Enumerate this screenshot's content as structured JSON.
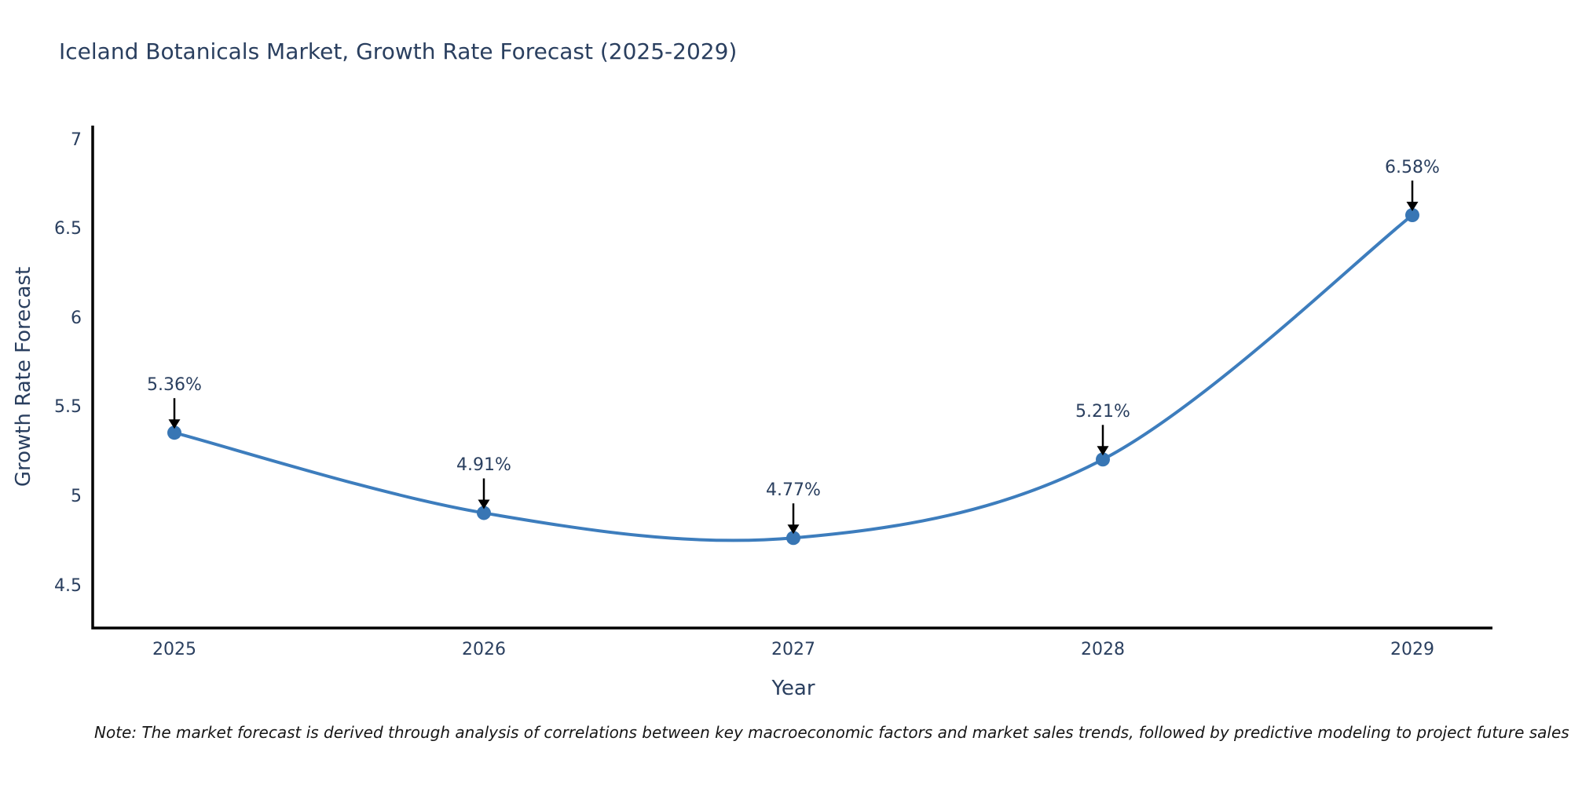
{
  "chart_data": {
    "type": "line",
    "line_shape": "spline",
    "title": "Iceland Botanicals Market, Growth Rate Forecast (2025-2029)",
    "xlabel": "Year",
    "ylabel": "Growth Rate Forecast",
    "x": [
      2025,
      2026,
      2027,
      2028,
      2029
    ],
    "values": [
      5.36,
      4.91,
      4.77,
      5.21,
      6.58
    ],
    "point_labels": [
      "5.36%",
      "4.91%",
      "4.77%",
      "5.21%",
      "6.58%"
    ],
    "yticks": [
      7,
      6.5,
      6,
      5.5,
      5,
      4.5
    ],
    "ytick_labels": [
      "7",
      "6.5",
      "6",
      "5.5",
      "5",
      "4.5"
    ],
    "xtick_labels": [
      "2025",
      "2026",
      "2027",
      "2028",
      "2029"
    ],
    "ylim": [
      4.26,
      7.08
    ],
    "grid": false,
    "legend": false,
    "note": "Note: The market forecast is derived through analysis of correlations between key macroeconomic factors and market sales trends, followed by predictive modeling to project future sales performance.",
    "colors": {
      "line": "#3d7dbd",
      "marker": "#3876b4",
      "text": "#2a3f5f",
      "axis": "#000000",
      "arrow": "#000000",
      "background": "#ffffff"
    }
  }
}
